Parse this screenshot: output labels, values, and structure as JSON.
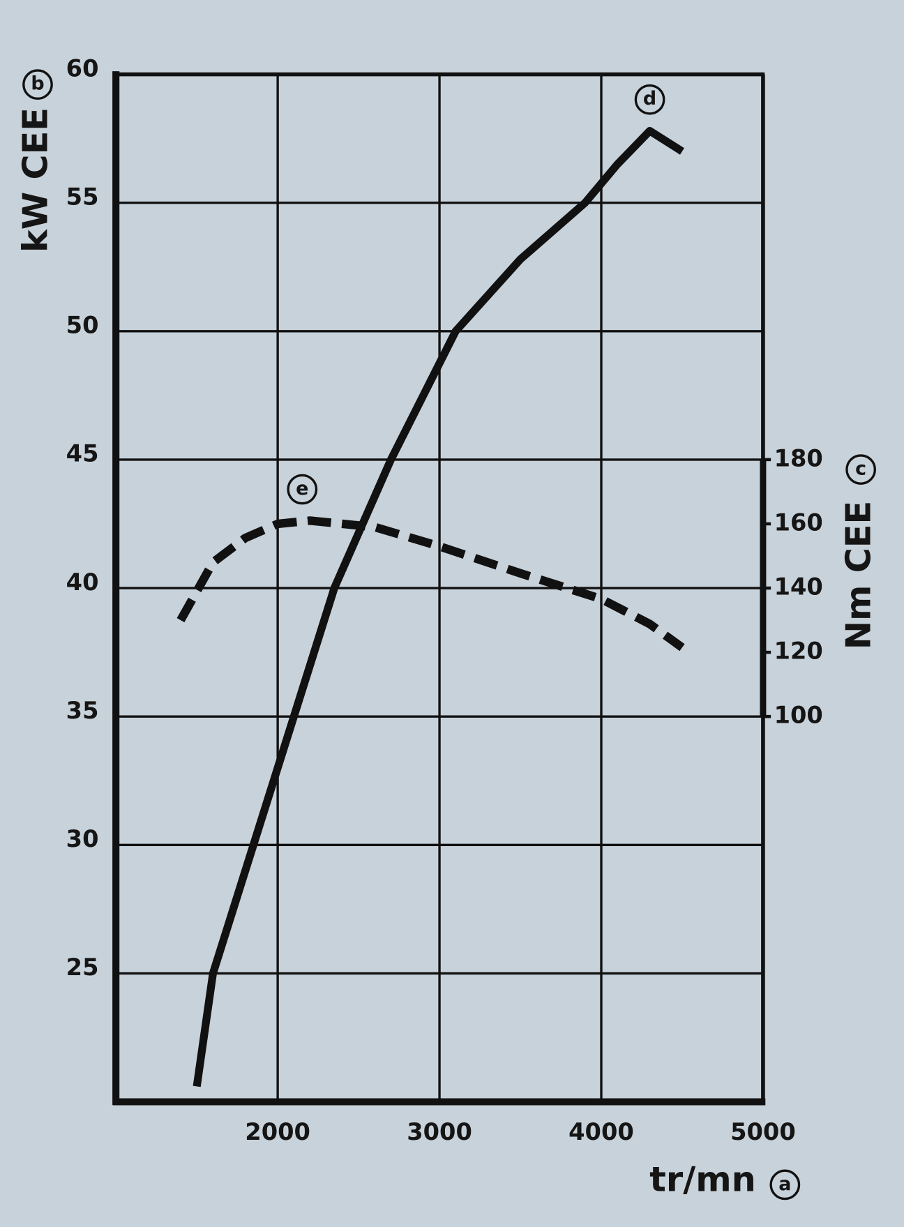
{
  "chart_data": {
    "type": "line",
    "y_label": "kW CEE",
    "y_label_marker": "b",
    "y2_label": "Nm CEE",
    "y2_label_marker": "c",
    "x_label": "tr/mn",
    "x_label_marker": "a",
    "xlim": [
      1000,
      5000
    ],
    "xticks": [
      2000,
      3000,
      4000,
      5000
    ],
    "ylim": [
      20,
      60
    ],
    "yticks": [
      25,
      30,
      35,
      40,
      45,
      50,
      55,
      60
    ],
    "y2lim": [
      -20,
      300
    ],
    "y2ticks": [
      100,
      120,
      140,
      160,
      180
    ],
    "grid": true,
    "series": [
      {
        "name": "d",
        "color": "#111111",
        "line_style": "solid",
        "x": [
          1500,
          1600,
          1850,
          2100,
          2350,
          2700,
          3100,
          3500,
          3900,
          4100,
          4300,
          4500
        ],
        "values": [
          20.6,
          25,
          30,
          35,
          40,
          45,
          50,
          52.8,
          55,
          56.5,
          57.8,
          57.0
        ]
      },
      {
        "name": "e",
        "color": "#111111",
        "line_style": "dashed",
        "axis": "y2",
        "x": [
          1400,
          1600,
          1800,
          2000,
          2200,
          2600,
          3000,
          3500,
          4000,
          4300,
          4500
        ],
        "values": [
          130,
          148,
          155.6,
          160,
          161,
          159,
          153,
          144.6,
          136.6,
          128.8,
          121.5
        ]
      }
    ]
  }
}
